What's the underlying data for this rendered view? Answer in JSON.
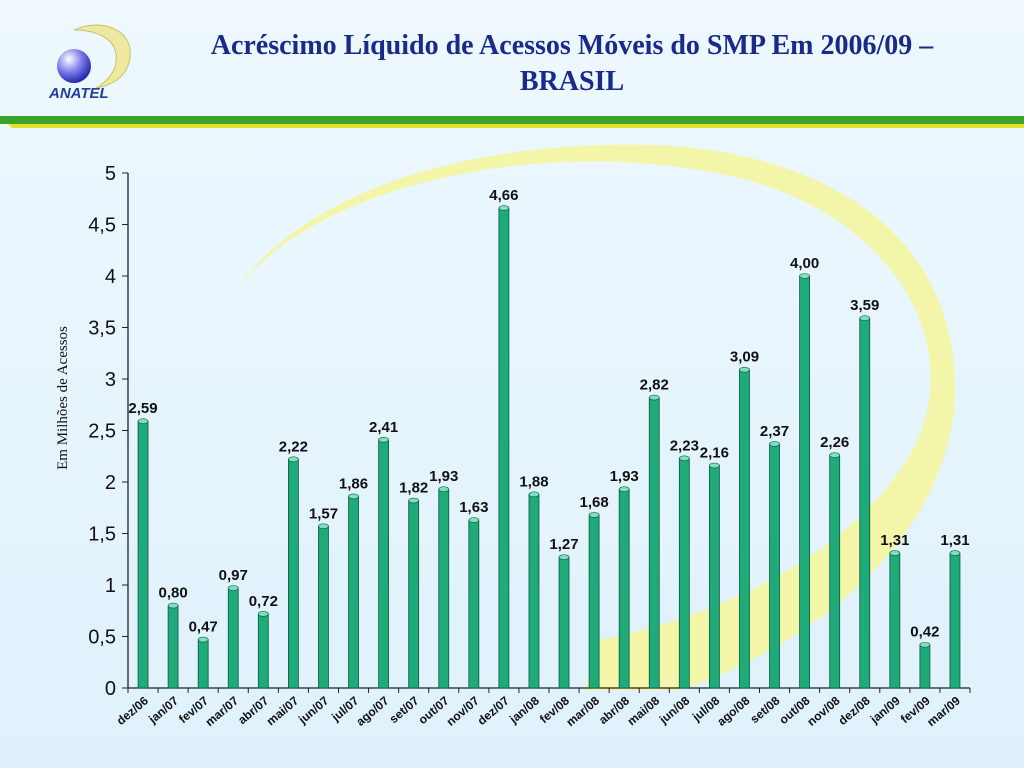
{
  "header": {
    "logo_text": "ANATEL",
    "title_line1": "Acréscimo Líquido de Acessos Móveis do SMP Em 2006/09 –",
    "title_line2": "BRASIL"
  },
  "colors": {
    "bar": "#1faa7a",
    "bar_top": "#7fe0bd",
    "bar_edge": "#0b5a3e",
    "title": "#1a2a8a",
    "rule_green": "#3aa52a",
    "rule_yellow": "#e8e02a",
    "swoosh": "#f3f5a8"
  },
  "chart_data": {
    "type": "bar",
    "title": "",
    "xlabel": "",
    "ylabel": "Em Milhões de Acessos",
    "ylim": [
      0,
      5
    ],
    "yticks": [
      "0",
      "0,5",
      "1",
      "1,5",
      "2",
      "2,5",
      "3",
      "3,5",
      "4",
      "4,5",
      "5"
    ],
    "categories": [
      "dez/06",
      "jan/07",
      "fev/07",
      "mar/07",
      "abr/07",
      "mai/07",
      "jun/07",
      "jul/07",
      "ago/07",
      "set/07",
      "out/07",
      "nov/07",
      "dez/07",
      "jan/08",
      "fev/08",
      "mar/08",
      "abr/08",
      "mai/08",
      "jun/08",
      "jul/08",
      "ago/08",
      "set/08",
      "out/08",
      "nov/08",
      "dez/08",
      "jan/09",
      "fev/09",
      "mar/09"
    ],
    "values": [
      2.59,
      0.8,
      0.47,
      0.97,
      0.72,
      2.22,
      1.57,
      1.86,
      2.41,
      1.82,
      1.93,
      1.63,
      4.66,
      1.88,
      1.27,
      1.68,
      1.93,
      2.82,
      2.23,
      2.16,
      3.09,
      2.37,
      4.0,
      2.26,
      3.59,
      1.31,
      0.42,
      1.31
    ],
    "labels": [
      "2,59",
      "0,80",
      "0,47",
      "0,97",
      "0,72",
      "2,22",
      "1,57",
      "1,86",
      "2,41",
      "1,82",
      "1,93",
      "1,63",
      "4,66",
      "1,88",
      "1,27",
      "1,68",
      "1,93",
      "2,82",
      "2,23",
      "2,16",
      "3,09",
      "2,37",
      "4,00",
      "2,26",
      "3,59",
      "1,31",
      "0,42",
      "1,31"
    ],
    "grid": false,
    "legend": "none"
  }
}
